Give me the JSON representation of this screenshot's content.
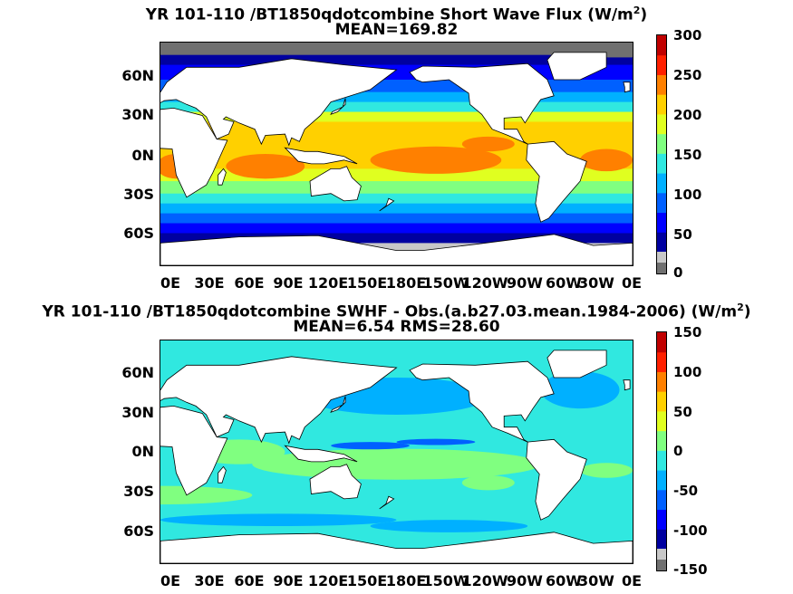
{
  "panels": [
    {
      "title_line1": "YR 101-110 /BT1850qdotcombine  Short Wave Flux (W/m",
      "units_sup": "2",
      "title_close": ")",
      "title_line2": "MEAN=169.82",
      "colorbar_ticks": [
        "300",
        "250",
        "200",
        "150",
        "100",
        "50",
        "0"
      ]
    },
    {
      "title_line1": "YR 101-110 /BT1850qdotcombine SWHF - Obs.(a.b27.03.mean.1984-2006) (W/m",
      "units_sup": "2",
      "title_close": ")",
      "title_line2": "MEAN=6.54 RMS=28.60",
      "colorbar_ticks": [
        "150",
        "100",
        "50",
        "0",
        "-50",
        "-100",
        "-150"
      ]
    }
  ],
  "lat_labels": [
    "60N",
    "30N",
    "0N",
    "30S",
    "60S"
  ],
  "lon_labels": [
    "0E",
    "30E",
    "60E",
    "90E",
    "120E",
    "150E",
    "180E",
    "150W",
    "120W",
    "90W",
    "60W",
    "30W",
    "0E"
  ],
  "chart_data": [
    {
      "type": "heatmap",
      "title": "YR 101-110 /BT1850qdotcombine  Short Wave Flux (W/m2)",
      "subtitle": "MEAN=169.82",
      "x_ticks": [
        "0E",
        "30E",
        "60E",
        "90E",
        "120E",
        "150E",
        "180E",
        "150W",
        "120W",
        "90W",
        "60W",
        "30W",
        "0E"
      ],
      "y_ticks": [
        "60N",
        "30N",
        "0N",
        "30S",
        "60S"
      ],
      "colorbar_range": [
        0,
        300
      ],
      "colorbar_ticks": [
        0,
        50,
        100,
        150,
        200,
        250,
        300
      ],
      "mean": 169.82
    },
    {
      "type": "heatmap",
      "title": "YR 101-110 /BT1850qdotcombine SWHF - Obs.(a.b27.03.mean.1984-2006) (W/m2)",
      "subtitle": "MEAN=6.54 RMS=28.60",
      "x_ticks": [
        "0E",
        "30E",
        "60E",
        "90E",
        "120E",
        "150E",
        "180E",
        "150W",
        "120W",
        "90W",
        "60W",
        "30W",
        "0E"
      ],
      "y_ticks": [
        "60N",
        "30N",
        "0N",
        "30S",
        "60S"
      ],
      "colorbar_range": [
        -150,
        150
      ],
      "colorbar_ticks": [
        -150,
        -100,
        -50,
        0,
        50,
        100,
        150
      ],
      "mean": 6.54,
      "rms": 28.6
    }
  ],
  "colors": {
    "colormap": [
      "#0000a0",
      "#0000ff",
      "#0060ff",
      "#00b0ff",
      "#30e8e0",
      "#80ff80",
      "#e0ff20",
      "#ffd000",
      "#ff8000",
      "#ff2000",
      "#c00000"
    ],
    "land": "#ffffff",
    "missing_dark": "#707070",
    "missing_light": "#c8c8c8"
  }
}
